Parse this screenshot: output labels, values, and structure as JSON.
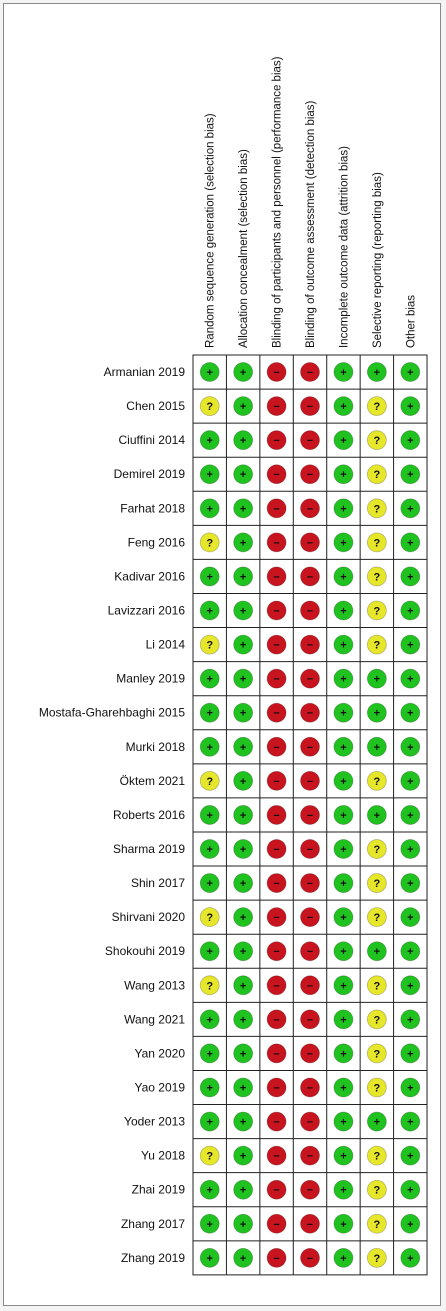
{
  "chart_data": {
    "type": "table",
    "columns": [
      "Random sequence generation (selection bias)",
      "Allocation concealment (selection bias)",
      "Blinding of participants and personnel (performance bias)",
      "Blinding of outcome assessment (detection bias)",
      "Incomplete outcome data (attrition bias)",
      "Selective reporting (reporting bias)",
      "Other bias"
    ],
    "symbols": {
      "low": "+",
      "unclear": "?",
      "high": "−"
    },
    "colors": {
      "low": "#1fc21f",
      "unclear": "#e6e62a",
      "high": "#c8141e"
    },
    "rows": [
      {
        "study": "Armanian 2019",
        "ratings": [
          "low",
          "low",
          "high",
          "high",
          "low",
          "low",
          "low"
        ]
      },
      {
        "study": "Chen 2015",
        "ratings": [
          "unclear",
          "low",
          "high",
          "high",
          "low",
          "unclear",
          "low"
        ]
      },
      {
        "study": "Ciuffini 2014",
        "ratings": [
          "low",
          "low",
          "high",
          "high",
          "low",
          "unclear",
          "low"
        ]
      },
      {
        "study": "Demirel 2019",
        "ratings": [
          "low",
          "low",
          "high",
          "high",
          "low",
          "unclear",
          "low"
        ]
      },
      {
        "study": "Farhat 2018",
        "ratings": [
          "low",
          "low",
          "high",
          "high",
          "low",
          "unclear",
          "low"
        ]
      },
      {
        "study": "Feng 2016",
        "ratings": [
          "unclear",
          "low",
          "high",
          "high",
          "low",
          "unclear",
          "low"
        ]
      },
      {
        "study": "Kadivar 2016",
        "ratings": [
          "low",
          "low",
          "high",
          "high",
          "low",
          "unclear",
          "low"
        ]
      },
      {
        "study": "Lavizzari 2016",
        "ratings": [
          "low",
          "low",
          "high",
          "high",
          "low",
          "unclear",
          "low"
        ]
      },
      {
        "study": "Li 2014",
        "ratings": [
          "unclear",
          "low",
          "high",
          "high",
          "low",
          "unclear",
          "low"
        ]
      },
      {
        "study": "Manley 2019",
        "ratings": [
          "low",
          "low",
          "high",
          "high",
          "low",
          "low",
          "low"
        ]
      },
      {
        "study": "Mostafa-Gharehbaghi 2015",
        "ratings": [
          "low",
          "low",
          "high",
          "high",
          "low",
          "low",
          "low"
        ]
      },
      {
        "study": "Murki 2018",
        "ratings": [
          "low",
          "low",
          "high",
          "high",
          "low",
          "low",
          "low"
        ]
      },
      {
        "study": "Öktem 2021",
        "ratings": [
          "unclear",
          "low",
          "high",
          "high",
          "low",
          "unclear",
          "low"
        ]
      },
      {
        "study": "Roberts 2016",
        "ratings": [
          "low",
          "low",
          "high",
          "high",
          "low",
          "low",
          "low"
        ]
      },
      {
        "study": "Sharma 2019",
        "ratings": [
          "low",
          "low",
          "high",
          "high",
          "low",
          "unclear",
          "low"
        ]
      },
      {
        "study": "Shin 2017",
        "ratings": [
          "low",
          "low",
          "high",
          "high",
          "low",
          "unclear",
          "low"
        ]
      },
      {
        "study": "Shirvani 2020",
        "ratings": [
          "unclear",
          "low",
          "high",
          "high",
          "low",
          "unclear",
          "low"
        ]
      },
      {
        "study": "Shokouhi 2019",
        "ratings": [
          "low",
          "low",
          "high",
          "high",
          "low",
          "low",
          "low"
        ]
      },
      {
        "study": "Wang 2013",
        "ratings": [
          "unclear",
          "low",
          "high",
          "high",
          "low",
          "unclear",
          "low"
        ]
      },
      {
        "study": "Wang 2021",
        "ratings": [
          "low",
          "low",
          "high",
          "high",
          "low",
          "unclear",
          "low"
        ]
      },
      {
        "study": "Yan 2020",
        "ratings": [
          "low",
          "low",
          "high",
          "high",
          "low",
          "unclear",
          "low"
        ]
      },
      {
        "study": "Yao 2019",
        "ratings": [
          "low",
          "low",
          "high",
          "high",
          "low",
          "unclear",
          "low"
        ]
      },
      {
        "study": "Yoder 2013",
        "ratings": [
          "low",
          "low",
          "high",
          "high",
          "low",
          "low",
          "low"
        ]
      },
      {
        "study": "Yu 2018",
        "ratings": [
          "unclear",
          "low",
          "high",
          "high",
          "low",
          "unclear",
          "low"
        ]
      },
      {
        "study": "Zhai 2019",
        "ratings": [
          "low",
          "low",
          "high",
          "high",
          "low",
          "unclear",
          "low"
        ]
      },
      {
        "study": "Zhang 2017",
        "ratings": [
          "low",
          "low",
          "high",
          "high",
          "low",
          "unclear",
          "low"
        ]
      },
      {
        "study": "Zhang 2019",
        "ratings": [
          "low",
          "low",
          "high",
          "high",
          "low",
          "unclear",
          "low"
        ]
      }
    ]
  }
}
